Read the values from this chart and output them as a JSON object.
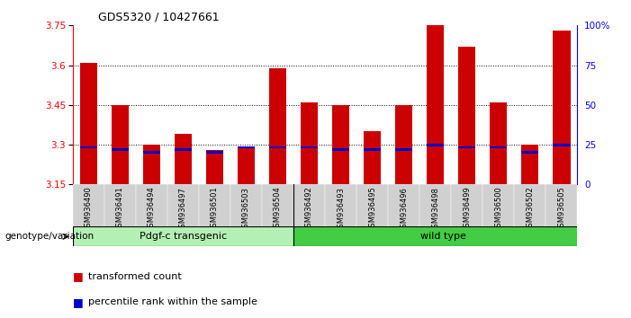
{
  "title": "GDS5320 / 10427661",
  "samples": [
    "GSM936490",
    "GSM936491",
    "GSM936494",
    "GSM936497",
    "GSM936501",
    "GSM936503",
    "GSM936504",
    "GSM936492",
    "GSM936493",
    "GSM936495",
    "GSM936496",
    "GSM936498",
    "GSM936499",
    "GSM936500",
    "GSM936502",
    "GSM936505"
  ],
  "red_values": [
    3.61,
    3.45,
    3.3,
    3.34,
    3.28,
    3.29,
    3.59,
    3.46,
    3.45,
    3.35,
    3.45,
    3.75,
    3.67,
    3.46,
    3.3,
    3.73
  ],
  "blue_values": [
    3.29,
    3.28,
    3.27,
    3.28,
    3.27,
    3.29,
    3.29,
    3.29,
    3.28,
    3.28,
    3.28,
    3.3,
    3.29,
    3.29,
    3.27,
    3.3
  ],
  "group1_label": "Pdgf-c transgenic",
  "group2_label": "wild type",
  "group_label": "genotype/variation",
  "n_group1": 7,
  "n_group2": 9,
  "ymin": 3.15,
  "ymax": 3.75,
  "yticks": [
    3.15,
    3.3,
    3.45,
    3.6,
    3.75
  ],
  "y2ticks": [
    0,
    25,
    50,
    75,
    100
  ],
  "y2labels": [
    "0",
    "25",
    "50",
    "75",
    "100%"
  ],
  "grid_lines": [
    3.3,
    3.45,
    3.6
  ],
  "bar_color": "#cc0000",
  "blue_color": "#0000cc",
  "group1_color": "#b3f0b3",
  "group2_color": "#44cc44",
  "legend_red": "transformed count",
  "legend_blue": "percentile rank within the sample",
  "xtick_bg": "#d0d0d0"
}
